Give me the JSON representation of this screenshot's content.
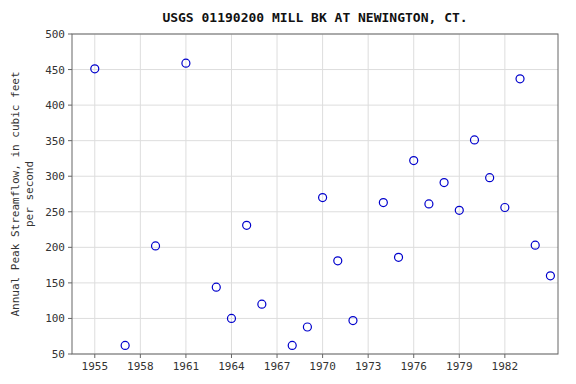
{
  "chart_data": {
    "type": "scatter",
    "title": "USGS 01190200 MILL BK AT NEWINGTON, CT.",
    "ylabel": "Annual Peak Streamflow, in cubic feet\nper second",
    "x": [
      1955,
      1957,
      1959,
      1961,
      1963,
      1964,
      1965,
      1966,
      1968,
      1969,
      1970,
      1971,
      1972,
      1974,
      1975,
      1976,
      1977,
      1978,
      1979,
      1980,
      1981,
      1982,
      1983,
      1984,
      1985
    ],
    "values": [
      451,
      62,
      202,
      459,
      144,
      100,
      231,
      120,
      62,
      88,
      270,
      181,
      97,
      263,
      186,
      322,
      261,
      291,
      252,
      351,
      298,
      256,
      437,
      203,
      160
    ],
    "color": "#0000cc",
    "marker": "open-circle",
    "xlim": [
      1953.5,
      1985.5
    ],
    "ylim": [
      50,
      500
    ],
    "xticks": [
      1955,
      1958,
      1961,
      1964,
      1967,
      1970,
      1973,
      1976,
      1979,
      1982
    ],
    "yticks": [
      50,
      100,
      150,
      200,
      250,
      300,
      350,
      400,
      450,
      500
    ],
    "grid": true
  }
}
